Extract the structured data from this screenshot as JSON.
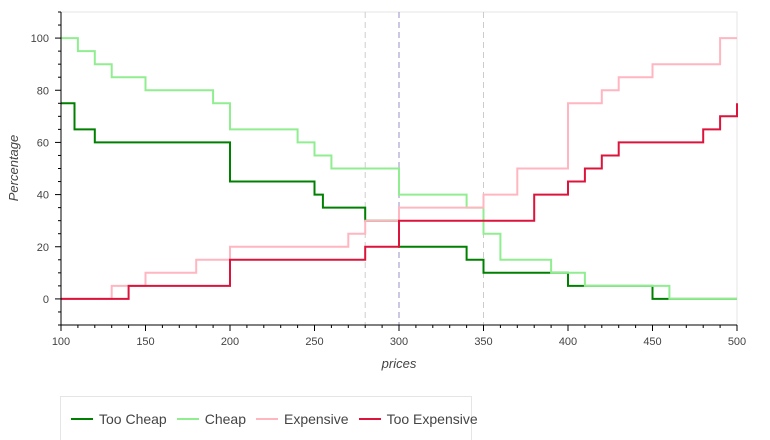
{
  "chart_data": {
    "type": "line",
    "xlabel": "prices",
    "ylabel": "Percentage",
    "xlim": [
      100,
      500
    ],
    "ylim": [
      -10,
      110
    ],
    "x_ticks": [
      100,
      150,
      200,
      250,
      300,
      350,
      400,
      450,
      500
    ],
    "y_ticks": [
      0,
      20,
      40,
      60,
      80,
      100
    ],
    "grid": false,
    "legend_position": "bottom-left",
    "vlines": [
      {
        "x": 280,
        "color": "#cccccc"
      },
      {
        "x": 300,
        "color": "#9a90c8"
      },
      {
        "x": 350,
        "color": "#cccccc"
      }
    ],
    "series": [
      {
        "name": "Too Cheap",
        "color": "#008000",
        "x": [
          100,
          108,
          108,
          120,
          120,
          200,
          200,
          250,
          250,
          255,
          255,
          280,
          280,
          300,
          300,
          340,
          340,
          350,
          350,
          400,
          400,
          450,
          450,
          500
        ],
        "y": [
          75,
          75,
          65,
          65,
          60,
          60,
          45,
          45,
          40,
          40,
          35,
          35,
          30,
          30,
          20,
          20,
          15,
          15,
          10,
          10,
          5,
          5,
          0,
          0
        ]
      },
      {
        "name": "Cheap",
        "color": "#90ee90",
        "x": [
          100,
          110,
          110,
          120,
          120,
          130,
          130,
          150,
          150,
          190,
          190,
          200,
          200,
          240,
          240,
          250,
          250,
          260,
          260,
          300,
          300,
          340,
          340,
          350,
          350,
          360,
          360,
          390,
          390,
          410,
          410,
          460,
          460,
          500
        ],
        "y": [
          100,
          100,
          95,
          95,
          90,
          90,
          85,
          85,
          80,
          80,
          75,
          75,
          65,
          65,
          60,
          60,
          55,
          55,
          50,
          50,
          40,
          40,
          35,
          35,
          25,
          25,
          15,
          15,
          10,
          10,
          5,
          5,
          0,
          0
        ],
        "values_are_step_points": true
      },
      {
        "name": "Expensive",
        "color": "#ffb6c1",
        "x": [
          100,
          130,
          130,
          150,
          150,
          180,
          180,
          200,
          200,
          270,
          270,
          280,
          280,
          300,
          300,
          350,
          350,
          370,
          370,
          400,
          400,
          420,
          420,
          430,
          430,
          450,
          450,
          490,
          490,
          500,
          500
        ],
        "y": [
          0,
          0,
          5,
          5,
          10,
          10,
          15,
          15,
          20,
          20,
          25,
          25,
          30,
          30,
          35,
          35,
          40,
          40,
          50,
          50,
          75,
          75,
          80,
          80,
          85,
          85,
          90,
          90,
          100,
          100,
          100
        ]
      },
      {
        "name": "Too Expensive",
        "color": "#dc143c",
        "x": [
          100,
          140,
          140,
          200,
          200,
          280,
          280,
          300,
          300,
          380,
          380,
          400,
          400,
          410,
          410,
          420,
          420,
          430,
          430,
          480,
          480,
          490,
          490,
          500,
          500
        ],
        "y": [
          0,
          0,
          5,
          5,
          15,
          15,
          20,
          20,
          30,
          30,
          40,
          40,
          45,
          45,
          50,
          50,
          55,
          55,
          60,
          60,
          65,
          65,
          70,
          70,
          75
        ]
      }
    ]
  }
}
